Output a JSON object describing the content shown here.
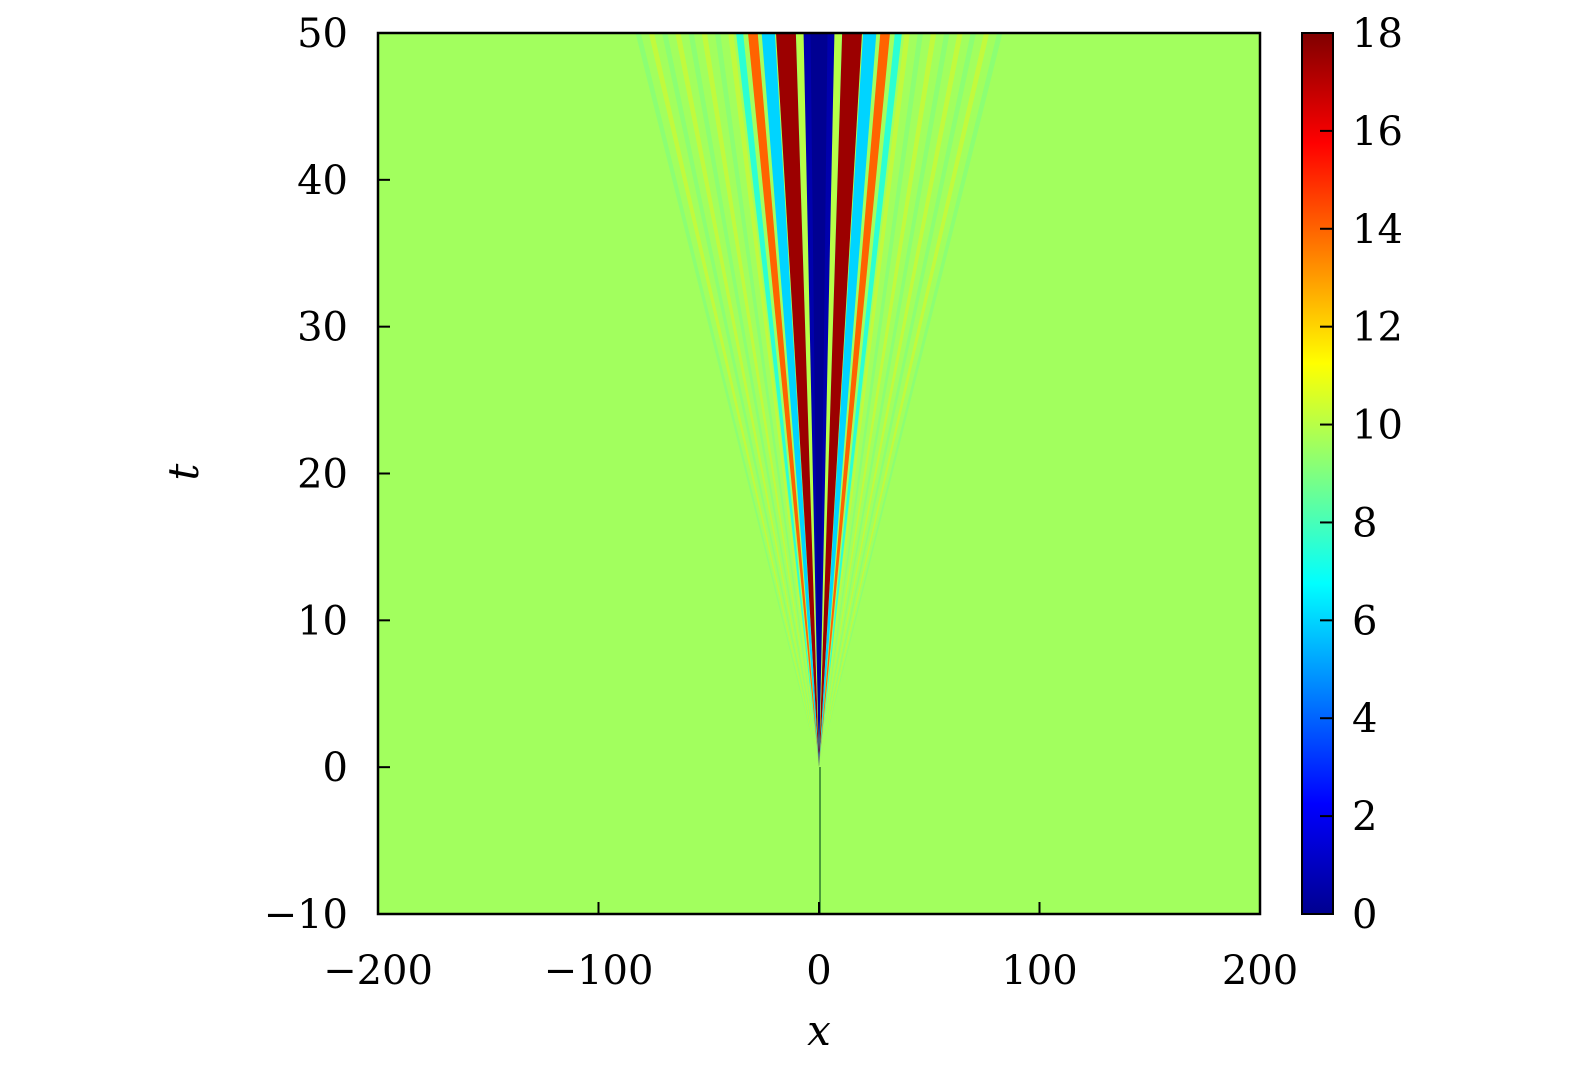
{
  "chart_data": {
    "type": "heatmap",
    "title": "",
    "xlabel": "x",
    "ylabel": "t",
    "xlim": [
      -200,
      200
    ],
    "ylim": [
      -10,
      50
    ],
    "x_ticks": [
      -200,
      -100,
      0,
      100,
      200
    ],
    "x_tick_labels": [
      "−200",
      "−100",
      "0",
      "100",
      "200"
    ],
    "y_ticks": [
      -10,
      0,
      10,
      20,
      30,
      40,
      50
    ],
    "y_tick_labels": [
      "−10",
      "0",
      "10",
      "20",
      "30",
      "40",
      "50"
    ],
    "colorbar": {
      "colormap": "jet",
      "range": [
        0,
        18
      ],
      "ticks": [
        0,
        2,
        4,
        6,
        8,
        10,
        12,
        14,
        16,
        18
      ],
      "tick_labels": [
        "0",
        "2",
        "4",
        "6",
        "8",
        "10",
        "12",
        "14",
        "16",
        "18"
      ]
    },
    "background_value": 9.6,
    "onset_t": 0,
    "pattern": "dispersive shock fan opening from x=0 at t=0 with a central low-intensity core and alternating high/low fringes",
    "bands": [
      {
        "name": "core",
        "value": 0.8,
        "half_width_at_t50": 7
      },
      {
        "name": "inner-fringe-1",
        "value": 17.5,
        "center_at_t50": 15
      },
      {
        "name": "inner-fringe-2",
        "value": 6,
        "center_at_t50": 23
      },
      {
        "name": "inner-fringe-3",
        "value": 14,
        "center_at_t50": 30
      },
      {
        "name": "inner-fringe-4",
        "value": 7.5,
        "center_at_t50": 36
      }
    ],
    "grid": false,
    "legend": "none"
  }
}
